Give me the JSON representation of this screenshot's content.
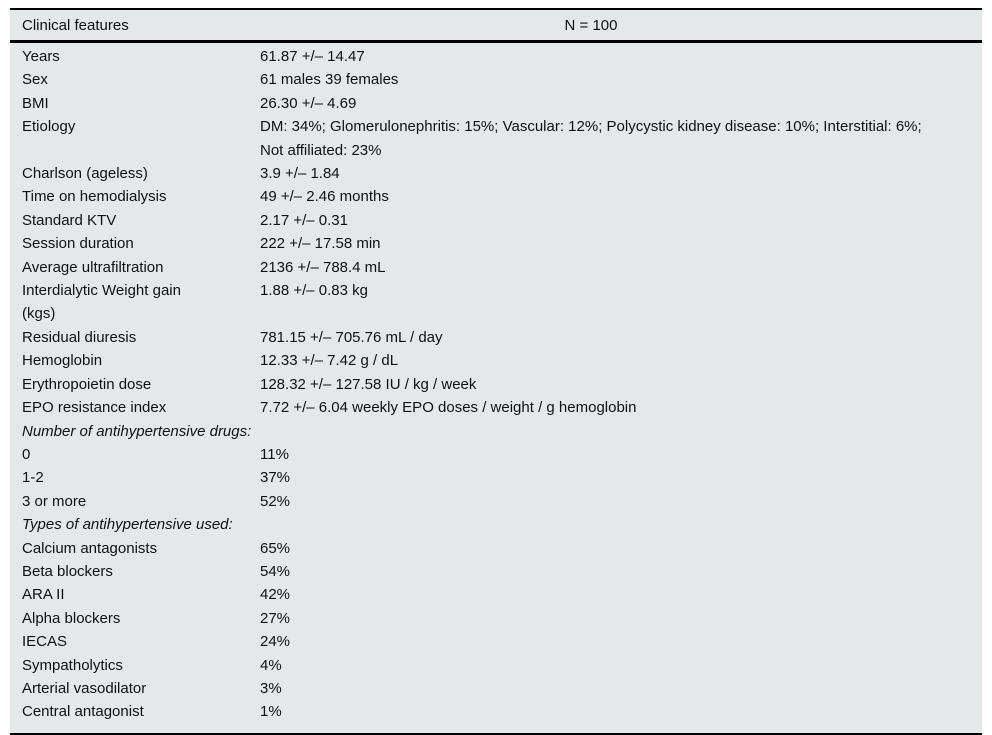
{
  "table": {
    "header": {
      "label": "Clinical features",
      "value": "N = 100"
    },
    "rows": [
      {
        "label": "Years",
        "value": "61.87 +/– 14.47"
      },
      {
        "label": "Sex",
        "value": "61 males 39 females"
      },
      {
        "label": "BMI",
        "value": "26.30 +/– 4.69"
      },
      {
        "label": "Etiology",
        "value": "DM: 34%; Glomerulonephritis: 15%; Vascular: 12%; Polycystic kidney disease: 10%; Interstitial: 6%;\nNot affiliated: 23%"
      },
      {
        "label": "Charlson (ageless)",
        "value": "3.9 +/– 1.84"
      },
      {
        "label": "Time on hemodialysis",
        "value": "49 +/– 2.46 months"
      },
      {
        "label": "Standard KTV",
        "value": "2.17 +/– 0.31"
      },
      {
        "label": "Session duration",
        "value": "222 +/– 17.58 min"
      },
      {
        "label": "Average ultrafiltration",
        "value": "2136 +/– 788.4 mL"
      },
      {
        "label": "Interdialytic Weight gain\n(kgs)",
        "value": "1.88 +/– 0.83 kg"
      },
      {
        "label": "Residual diuresis",
        "value": "781.15 +/– 705.76 mL / day"
      },
      {
        "label": "Hemoglobin",
        "value": "12.33 +/– 7.42 g / dL"
      },
      {
        "label": "Erythropoietin dose",
        "value": "128.32 +/– 127.58 IU / kg / week"
      },
      {
        "label": "EPO resistance index",
        "value": "7.72 +/– 6.04 weekly EPO doses / weight / g hemoglobin"
      },
      {
        "type": "section",
        "label": "Number of antihypertensive drugs:"
      },
      {
        "label": "0",
        "value": "11%"
      },
      {
        "label": "1-2",
        "value": "37%"
      },
      {
        "label": "3 or more",
        "value": "52%"
      },
      {
        "type": "section",
        "label": "Types of antihypertensive used:"
      },
      {
        "label": "Calcium antagonists",
        "value": "65%"
      },
      {
        "label": "Beta blockers",
        "value": "54%"
      },
      {
        "label": "ARA II",
        "value": "42%"
      },
      {
        "label": "Alpha blockers",
        "value": "27%"
      },
      {
        "label": "IECAS",
        "value": "24%"
      },
      {
        "label": "Sympatholytics",
        "value": "4%"
      },
      {
        "label": "Arterial vasodilator",
        "value": "3%"
      },
      {
        "label": "Central antagonist",
        "value": "1%"
      }
    ],
    "colors": {
      "table_background": "#e4e8e9",
      "text": "#101212",
      "border": "#000000",
      "page_background": "#ffffff"
    }
  }
}
